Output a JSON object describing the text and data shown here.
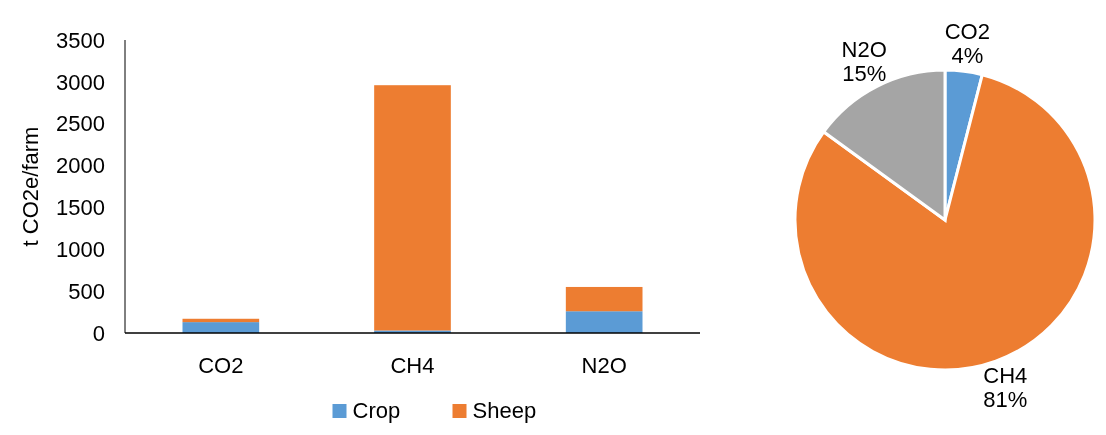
{
  "chart_data": [
    {
      "type": "bar",
      "stacked": true,
      "ylabel": "t CO2e/farm",
      "categories": [
        "CO2",
        "CH4",
        "N2O"
      ],
      "series": [
        {
          "name": "Crop",
          "color": "#5b9bd5",
          "values": [
            130,
            30,
            260
          ]
        },
        {
          "name": "Sheep",
          "color": "#ed7d31",
          "values": [
            40,
            2930,
            290
          ]
        }
      ],
      "ylim": [
        0,
        3500
      ],
      "yticks": [
        0,
        500,
        1000,
        1500,
        2000,
        2500,
        3000,
        3500
      ],
      "grid": false,
      "legend": "bottom"
    },
    {
      "type": "pie",
      "categories": [
        "CO2",
        "CH4",
        "N2O"
      ],
      "values": [
        4,
        81,
        15
      ],
      "value_labels": [
        "4%",
        "81%",
        "15%"
      ],
      "colors": [
        "#5b9bd5",
        "#ed7d31",
        "#a5a5a5"
      ]
    }
  ]
}
